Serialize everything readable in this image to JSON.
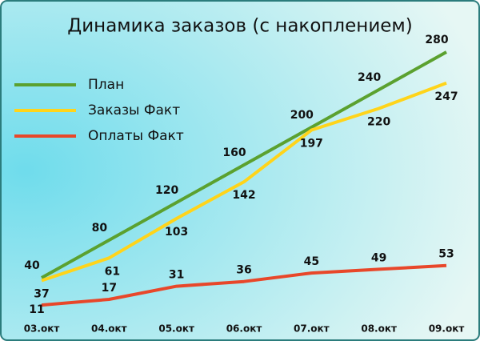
{
  "chart_data": {
    "type": "line",
    "title": "Динамика  заказов  (с  накоплением)",
    "categories": [
      "03.окт",
      "04.окт",
      "05.окт",
      "06.окт",
      "07.окт",
      "08.окт",
      "09.окт"
    ],
    "series": [
      {
        "name": "План",
        "color": "#5ba12f",
        "values": [
          40,
          80,
          120,
          160,
          200,
          240,
          280
        ]
      },
      {
        "name": "Заказы Факт",
        "color": "#ffd41a",
        "values": [
          37,
          61,
          103,
          142,
          197,
          220,
          247
        ]
      },
      {
        "name": "Оплаты Факт",
        "color": "#e8472a",
        "values": [
          11,
          17,
          31,
          36,
          45,
          49,
          53
        ]
      }
    ],
    "legend": "top-left"
  }
}
